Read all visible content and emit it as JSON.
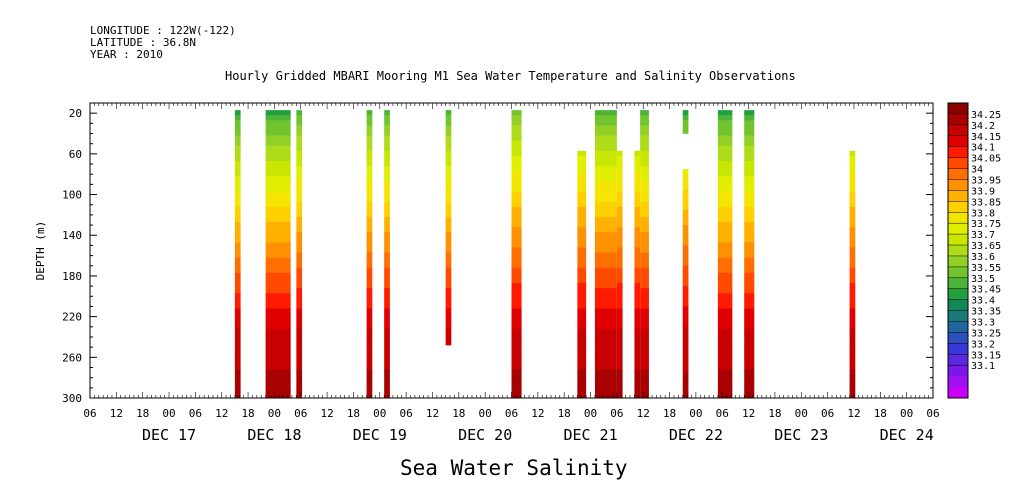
{
  "header": {
    "longitude": "LONGITUDE : 122W(-122)",
    "latitude": "LATITUDE : 36.8N",
    "year": "YEAR : 2010"
  },
  "footer_title": "Sea Water Salinity",
  "chart_data": {
    "type": "heatmap",
    "title": "Hourly Gridded MBARI Mooring M1 Sea Water Temperature and Salinity Observations",
    "xlabel": "",
    "ylabel": "DEPTH (m)",
    "x_units": "hours since Dec 16 2010 00:00",
    "xlim": [
      6,
      198
    ],
    "ylim": [
      300,
      10
    ],
    "y_ticks": [
      20,
      60,
      100,
      140,
      180,
      220,
      260,
      300
    ],
    "x_hour_ticks": [
      "06",
      "12",
      "18",
      "00",
      "06",
      "12",
      "18",
      "00",
      "06",
      "12",
      "18",
      "00",
      "06",
      "12",
      "18",
      "00",
      "06",
      "12",
      "18",
      "00",
      "06",
      "12",
      "18",
      "00",
      "06",
      "12",
      "18",
      "00",
      "06",
      "12",
      "18",
      "00",
      "06"
    ],
    "x_day_labels": [
      "DEC 17",
      "DEC 18",
      "DEC 19",
      "DEC 20",
      "DEC 21",
      "DEC 22",
      "DEC 23",
      "DEC 24"
    ],
    "colorbar_levels": [
      "34.25",
      "34.2",
      "34.15",
      "34.1",
      "34.05",
      "34",
      "33.95",
      "33.9",
      "33.85",
      "33.8",
      "33.75",
      "33.7",
      "33.65",
      "33.6",
      "33.55",
      "33.5",
      "33.45",
      "33.4",
      "33.35",
      "33.3",
      "33.25",
      "33.2",
      "33.15",
      "33.1"
    ],
    "colorbar_colors": [
      "#8b0000",
      "#a80000",
      "#c80000",
      "#e00000",
      "#ff1a00",
      "#ff4a00",
      "#ff6e00",
      "#ff9000",
      "#ffb000",
      "#ffd000",
      "#f2e600",
      "#e0ee00",
      "#c8e600",
      "#aedc1a",
      "#92d028",
      "#72c42e",
      "#4cb438",
      "#22a040",
      "#12885a",
      "#1a7a78",
      "#2266a0",
      "#2a50c0",
      "#3838d8",
      "#5a28e0",
      "#7a18e8",
      "#a010f0",
      "#c800f8"
    ],
    "column_groups": [
      {
        "x0": 39.0,
        "x1": 40.3,
        "top": 20,
        "base": 33.45
      },
      {
        "x0": 46.0,
        "x1": 51.7,
        "top": 20,
        "base": 33.45
      },
      {
        "x0": 53.0,
        "x1": 54.3,
        "top": 20,
        "base": 33.5
      },
      {
        "x0": 69.0,
        "x1": 70.3,
        "top": 20,
        "base": 33.5
      },
      {
        "x0": 73.0,
        "x1": 74.3,
        "top": 20,
        "base": 33.5
      },
      {
        "x0": 87.0,
        "x1": 88.3,
        "top": 20,
        "base": 33.5,
        "bottom": 248
      },
      {
        "x0": 102.0,
        "x1": 104.3,
        "top": 20,
        "base": 33.55
      },
      {
        "x0": 117.0,
        "x1": 119.0,
        "top": 60,
        "base": 33.55
      },
      {
        "x0": 121.0,
        "x1": 126.0,
        "top": 20,
        "base": 33.5
      },
      {
        "x0": 126.0,
        "x1": 127.3,
        "top": 60,
        "base": 33.55
      },
      {
        "x0": 130.0,
        "x1": 131.3,
        "top": 60,
        "base": 33.55
      },
      {
        "x0": 131.3,
        "x1": 133.3,
        "top": 20,
        "base": 33.5
      },
      {
        "x0": 141.0,
        "x1": 142.3,
        "top": 20,
        "base": 33.45,
        "bottom": 40
      },
      {
        "x0": 141.0,
        "x1": 142.3,
        "top": 78,
        "base": 33.55
      },
      {
        "x0": 149.0,
        "x1": 152.3,
        "top": 20,
        "base": 33.45
      },
      {
        "x0": 155.0,
        "x1": 157.3,
        "top": 20,
        "base": 33.45
      },
      {
        "x0": 179.0,
        "x1": 180.3,
        "top": 60,
        "base": 33.55
      }
    ]
  }
}
